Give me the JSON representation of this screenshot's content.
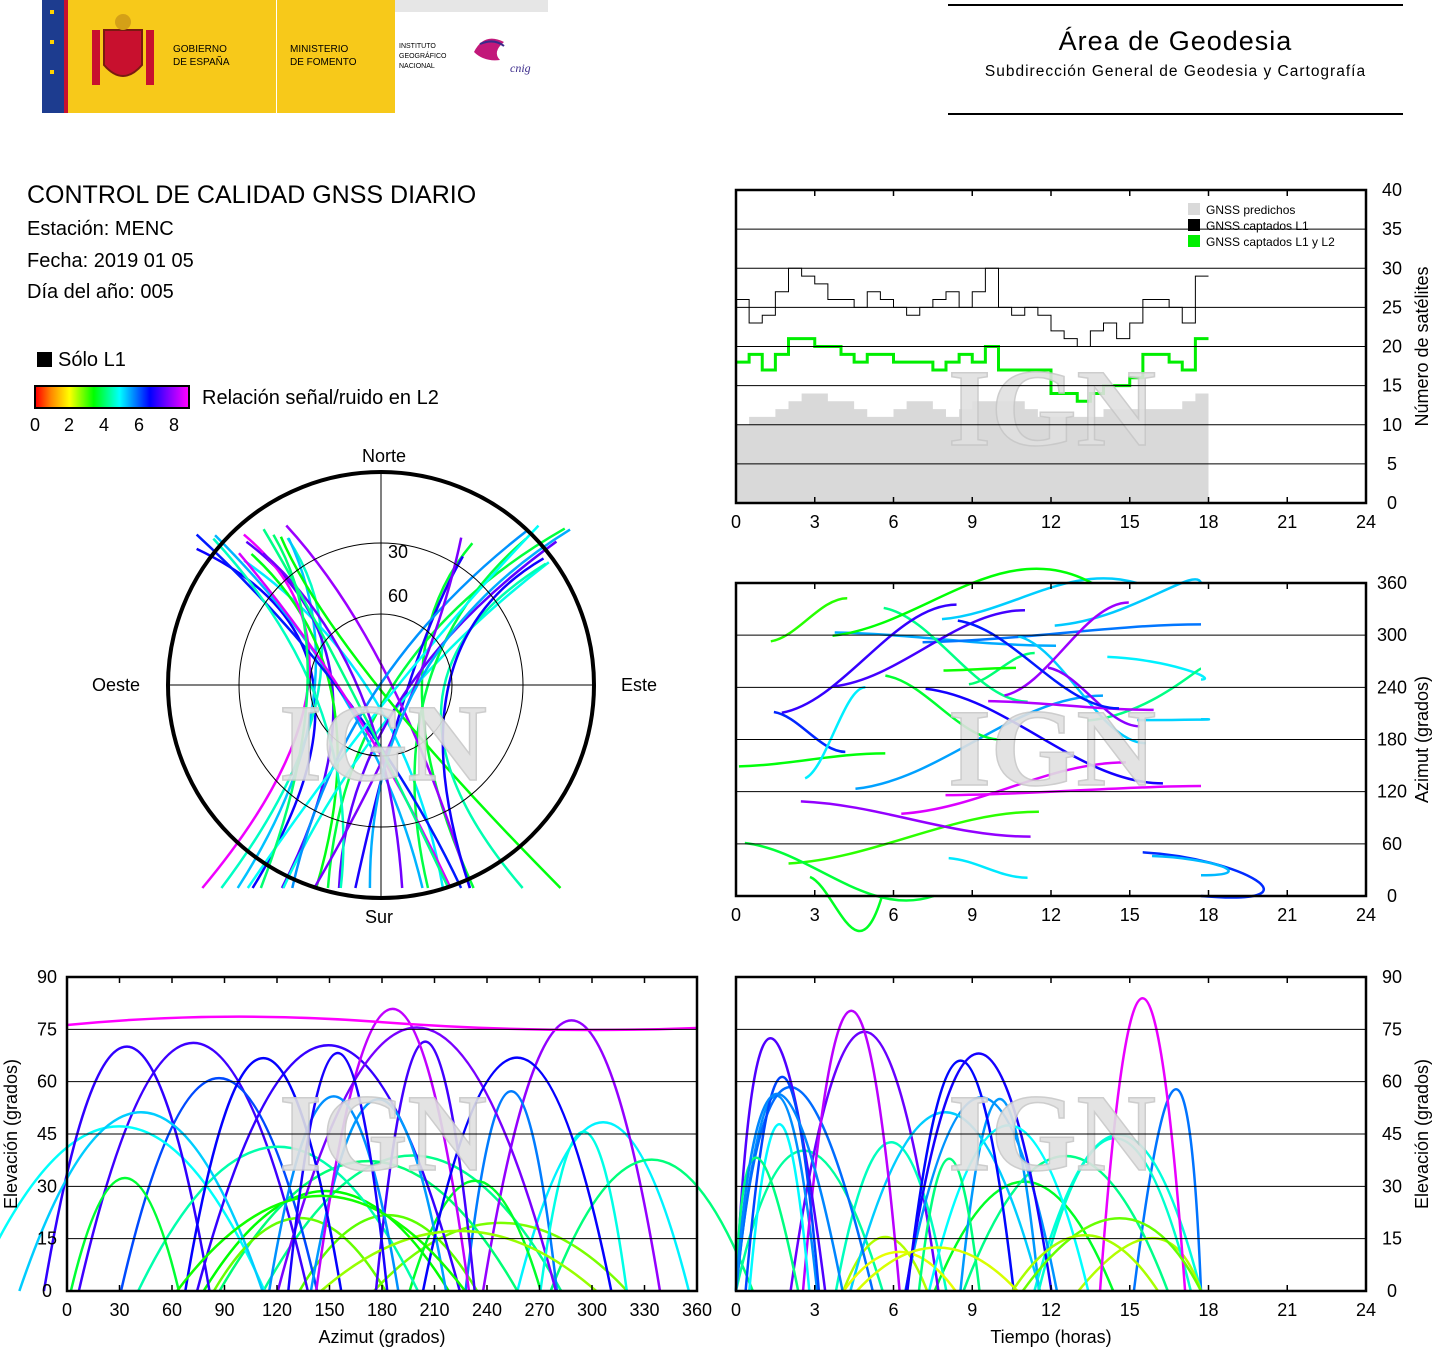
{
  "logos": {
    "gov_line1": "GOBIERNO",
    "gov_line2": "DE ESPAÑA",
    "min_line1": "MINISTERIO",
    "min_line2": "DE FOMENTO",
    "ign_line1": "INSTITUTO",
    "ign_line2": "GEOGRÁFICO",
    "ign_line3": "NACIONAL",
    "cnig": "cnig"
  },
  "header": {
    "title": "Área de Geodesia",
    "subtitle": "Subdirección General de Geodesia y Cartografía"
  },
  "info": {
    "title": "CONTROL DE CALIDAD GNSS DIARIO",
    "station": "Estación: MENC",
    "date": "Fecha: 2019 01 05",
    "doy": "Día del año: 005"
  },
  "legend": {
    "l1_only": "Sólo L1",
    "snr_label": "Relación señal/ruido en L2",
    "snr_ticks": [
      "0",
      "2",
      "4",
      "6",
      "8"
    ]
  },
  "watermark": "IGN",
  "chart_data": [
    {
      "type": "area",
      "name": "satellite-count",
      "x": [
        0,
        0.5,
        1,
        1.5,
        2,
        2.5,
        3,
        3.5,
        4,
        4.5,
        5,
        5.5,
        6,
        6.5,
        7,
        7.5,
        8,
        8.5,
        9,
        9.5,
        10,
        10.5,
        11,
        11.5,
        12,
        12.5,
        13,
        13.5,
        14,
        14.5,
        15,
        15.5,
        16,
        16.5,
        17,
        17.5
      ],
      "series": [
        {
          "name": "GNSS predichos",
          "color": "#d9d9d9",
          "values": [
            10,
            11,
            11,
            12,
            13,
            14,
            14,
            13,
            13,
            12,
            11,
            11,
            12,
            13,
            13,
            12,
            11,
            12,
            13,
            13,
            13,
            13,
            12,
            11,
            11,
            11,
            11,
            11,
            12,
            12,
            12,
            12,
            12,
            12,
            13,
            14
          ]
        },
        {
          "name": "GNSS captados L1",
          "color": "#000000",
          "values": [
            26,
            23,
            24,
            27,
            30,
            29,
            28,
            26,
            26,
            25,
            27,
            26,
            25,
            24,
            25,
            26,
            27,
            25,
            27,
            30,
            25,
            24,
            25,
            24,
            22,
            21,
            20,
            22,
            23,
            21,
            23,
            26,
            26,
            25,
            23,
            29
          ]
        },
        {
          "name": "GNSS captados L1 y L2",
          "color": "#00ee00",
          "values": [
            18,
            19,
            17,
            19,
            21,
            21,
            20,
            20,
            19,
            18,
            19,
            19,
            18,
            18,
            18,
            17,
            18,
            19,
            18,
            20,
            17,
            17,
            17,
            17,
            14,
            14,
            13,
            14,
            15,
            15,
            16,
            19,
            19,
            18,
            17,
            21
          ]
        }
      ],
      "xlim": [
        0,
        24
      ],
      "ylim": [
        0,
        40
      ],
      "xticks": [
        "0",
        "3",
        "6",
        "9",
        "12",
        "15",
        "18",
        "21",
        "24"
      ],
      "yticks": [
        "0",
        "5",
        "10",
        "15",
        "20",
        "25",
        "30",
        "35",
        "40"
      ],
      "ylabel": "Número de satélites"
    },
    {
      "type": "scatter",
      "name": "azimuth-time",
      "xlim": [
        0,
        24
      ],
      "ylim": [
        0,
        360
      ],
      "xticks": [
        "0",
        "3",
        "6",
        "9",
        "12",
        "15",
        "18",
        "21",
        "24"
      ],
      "yticks": [
        "0",
        "60",
        "120",
        "180",
        "240",
        "300",
        "360"
      ],
      "ylabel": "Azimut (grados)"
    },
    {
      "type": "scatter",
      "name": "elevation-azimuth",
      "xlim": [
        0,
        360
      ],
      "ylim": [
        0,
        90
      ],
      "xticks": [
        "0",
        "30",
        "60",
        "90",
        "120",
        "150",
        "180",
        "210",
        "240",
        "270",
        "300",
        "330",
        "360"
      ],
      "yticks": [
        "0",
        "15",
        "30",
        "45",
        "60",
        "75",
        "90"
      ],
      "xlabel": "Azimut (grados)",
      "ylabel": "Elevación (grados)"
    },
    {
      "type": "scatter",
      "name": "elevation-time",
      "xlim": [
        0,
        24
      ],
      "ylim": [
        0,
        90
      ],
      "xticks": [
        "0",
        "3",
        "6",
        "9",
        "12",
        "15",
        "18",
        "21",
        "24"
      ],
      "yticks": [
        "0",
        "15",
        "30",
        "45",
        "60",
        "75",
        "90"
      ],
      "xlabel": "Tiempo (horas)",
      "ylabel": "Elevación (grados)"
    },
    {
      "type": "scatter",
      "name": "skyplot",
      "directions": {
        "north": "Norte",
        "south": "Sur",
        "east": "Este",
        "west": "Oeste"
      },
      "rings": [
        "30",
        "60"
      ]
    }
  ]
}
